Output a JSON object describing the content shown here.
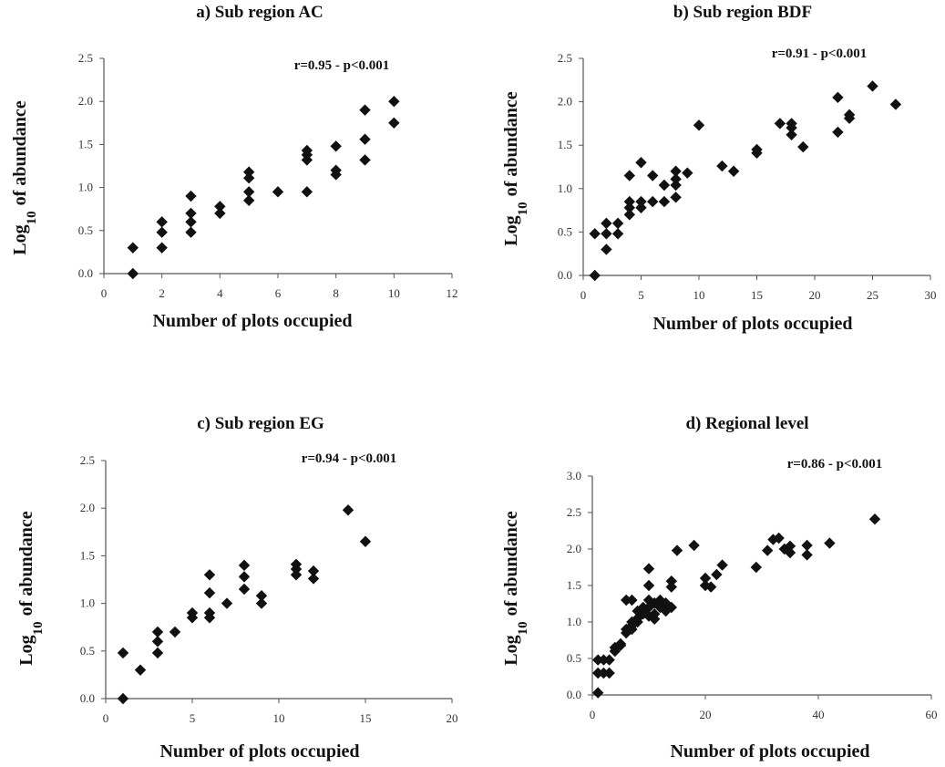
{
  "chart_data": [
    {
      "type": "scatter",
      "title": "a) Sub region AC",
      "annotation": "r=0.95 - p<0.001",
      "xlabel": "Number of plots occupied",
      "ylabel_main": "Log",
      "ylabel_sub": "10",
      "ylabel_rest": "of abundance",
      "xlim": [
        0,
        12
      ],
      "ylim": [
        0,
        2.5
      ],
      "xticks": [
        0,
        2,
        4,
        6,
        8,
        10,
        12
      ],
      "yticks": [
        "0.0",
        "0.5",
        "1.0",
        "1.5",
        "2.0",
        "2.5"
      ],
      "points": [
        [
          1,
          0.3
        ],
        [
          1,
          0.0
        ],
        [
          2,
          0.6
        ],
        [
          2,
          0.48
        ],
        [
          2,
          0.3
        ],
        [
          3,
          0.9
        ],
        [
          3,
          0.7
        ],
        [
          3,
          0.6
        ],
        [
          3,
          0.48
        ],
        [
          4,
          0.78
        ],
        [
          4,
          0.7
        ],
        [
          5,
          1.18
        ],
        [
          5,
          1.11
        ],
        [
          5,
          0.95
        ],
        [
          5,
          0.85
        ],
        [
          6,
          0.95
        ],
        [
          7,
          1.43
        ],
        [
          7,
          1.38
        ],
        [
          7,
          1.32
        ],
        [
          7,
          0.95
        ],
        [
          8,
          1.48
        ],
        [
          8,
          1.2
        ],
        [
          8,
          1.15
        ],
        [
          9,
          1.9
        ],
        [
          9,
          1.56
        ],
        [
          9,
          1.32
        ],
        [
          10,
          2.0
        ],
        [
          10,
          1.75
        ]
      ]
    },
    {
      "type": "scatter",
      "title": "b) Sub region BDF",
      "annotation": "r=0.91 - p<0.001",
      "xlabel": "Number of plots occupied",
      "ylabel_main": "Log",
      "ylabel_sub": "10",
      "ylabel_rest": "of abundance",
      "xlim": [
        0,
        30
      ],
      "ylim": [
        0,
        2.5
      ],
      "xticks": [
        0,
        5,
        10,
        15,
        20,
        25,
        30
      ],
      "yticks": [
        "0.0",
        "0.5",
        "1.0",
        "1.5",
        "2.0",
        "2.5"
      ],
      "points": [
        [
          1,
          0.48
        ],
        [
          1,
          0.0
        ],
        [
          2,
          0.6
        ],
        [
          2,
          0.48
        ],
        [
          2,
          0.3
        ],
        [
          3,
          0.6
        ],
        [
          3,
          0.48
        ],
        [
          4,
          1.15
        ],
        [
          4,
          0.85
        ],
        [
          4,
          0.78
        ],
        [
          4,
          0.7
        ],
        [
          5,
          1.3
        ],
        [
          5,
          0.85
        ],
        [
          5,
          0.78
        ],
        [
          6,
          1.15
        ],
        [
          6,
          0.85
        ],
        [
          7,
          1.04
        ],
        [
          7,
          0.85
        ],
        [
          8,
          1.2
        ],
        [
          8,
          1.11
        ],
        [
          8,
          1.04
        ],
        [
          8,
          0.9
        ],
        [
          9,
          1.18
        ],
        [
          10,
          1.73
        ],
        [
          12,
          1.26
        ],
        [
          13,
          1.2
        ],
        [
          15,
          1.45
        ],
        [
          15,
          1.41
        ],
        [
          17,
          1.75
        ],
        [
          18,
          1.75
        ],
        [
          18,
          1.7
        ],
        [
          18,
          1.62
        ],
        [
          19,
          1.48
        ],
        [
          22,
          2.05
        ],
        [
          22,
          1.65
        ],
        [
          23,
          1.85
        ],
        [
          23,
          1.81
        ],
        [
          25,
          2.18
        ],
        [
          27,
          1.97
        ]
      ]
    },
    {
      "type": "scatter",
      "title": "c) Sub region EG",
      "annotation": "r=0.94 - p<0.001",
      "xlabel": "Number of plots occupied",
      "ylabel_main": "Log",
      "ylabel_sub": "10",
      "ylabel_rest": "of abundance",
      "xlim": [
        0,
        20
      ],
      "ylim": [
        0,
        2.5
      ],
      "xticks": [
        0,
        5,
        10,
        15,
        20
      ],
      "yticks": [
        "0.0",
        "0.5",
        "1.0",
        "1.5",
        "2.0",
        "2.5"
      ],
      "points": [
        [
          1,
          0.48
        ],
        [
          1,
          0.0
        ],
        [
          2,
          0.3
        ],
        [
          3,
          0.7
        ],
        [
          3,
          0.6
        ],
        [
          3,
          0.48
        ],
        [
          4,
          0.7
        ],
        [
          5,
          0.9
        ],
        [
          5,
          0.85
        ],
        [
          6,
          1.3
        ],
        [
          6,
          1.11
        ],
        [
          6,
          0.9
        ],
        [
          6,
          0.85
        ],
        [
          7,
          1.0
        ],
        [
          8,
          1.4
        ],
        [
          8,
          1.28
        ],
        [
          8,
          1.15
        ],
        [
          9,
          1.08
        ],
        [
          9,
          1.0
        ],
        [
          11,
          1.41
        ],
        [
          11,
          1.36
        ],
        [
          11,
          1.3
        ],
        [
          12,
          1.34
        ],
        [
          12,
          1.26
        ],
        [
          14,
          1.98
        ],
        [
          15,
          1.65
        ]
      ]
    },
    {
      "type": "scatter",
      "title": "d) Regional level",
      "annotation": "r=0.86 - p<0.001",
      "xlabel": "Number of plots occupied",
      "ylabel_main": "Log",
      "ylabel_sub": "10",
      "ylabel_rest": "of abundance",
      "xlim": [
        0,
        60
      ],
      "ylim": [
        0,
        3.0
      ],
      "xticks": [
        0,
        20,
        40,
        60
      ],
      "yticks": [
        "0.0",
        "0.5",
        "1.0",
        "1.5",
        "2.0",
        "2.5",
        "3.0"
      ],
      "points": [
        [
          1,
          0.48
        ],
        [
          1,
          0.3
        ],
        [
          1,
          0.03
        ],
        [
          2,
          0.48
        ],
        [
          2,
          0.3
        ],
        [
          3,
          0.48
        ],
        [
          3,
          0.3
        ],
        [
          4,
          0.6
        ],
        [
          4,
          0.65
        ],
        [
          5,
          0.68
        ],
        [
          5,
          0.7
        ],
        [
          6,
          1.3
        ],
        [
          6,
          0.85
        ],
        [
          6,
          0.9
        ],
        [
          7,
          1.3
        ],
        [
          7,
          1.0
        ],
        [
          7,
          0.95
        ],
        [
          7,
          0.9
        ],
        [
          8,
          1.15
        ],
        [
          8,
          1.05
        ],
        [
          8,
          1.0
        ],
        [
          9,
          1.2
        ],
        [
          9,
          1.11
        ],
        [
          9,
          1.15
        ],
        [
          10,
          1.73
        ],
        [
          10,
          1.5
        ],
        [
          10,
          1.3
        ],
        [
          10,
          1.2
        ],
        [
          10,
          1.08
        ],
        [
          11,
          1.26
        ],
        [
          11,
          1.11
        ],
        [
          11,
          1.04
        ],
        [
          12,
          1.3
        ],
        [
          12,
          1.2
        ],
        [
          13,
          1.26
        ],
        [
          13,
          1.15
        ],
        [
          14,
          1.56
        ],
        [
          14,
          1.48
        ],
        [
          14,
          1.2
        ],
        [
          15,
          1.98
        ],
        [
          18,
          2.05
        ],
        [
          20,
          1.6
        ],
        [
          20,
          1.5
        ],
        [
          21,
          1.48
        ],
        [
          22,
          1.65
        ],
        [
          23,
          1.78
        ],
        [
          29,
          1.75
        ],
        [
          31,
          1.98
        ],
        [
          32,
          2.13
        ],
        [
          33,
          2.15
        ],
        [
          34,
          2.0
        ],
        [
          35,
          1.95
        ],
        [
          35,
          2.04
        ],
        [
          38,
          2.05
        ],
        [
          38,
          1.92
        ],
        [
          42,
          2.08
        ],
        [
          50,
          2.41
        ]
      ]
    }
  ]
}
